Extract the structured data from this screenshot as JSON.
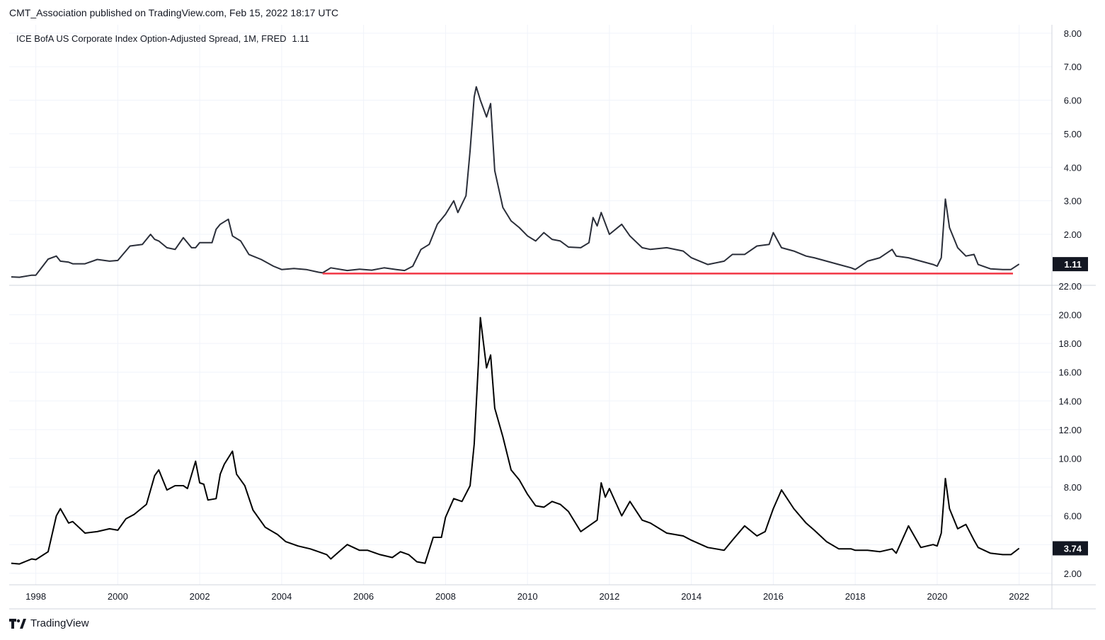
{
  "header": {
    "published": "CMT_Association published on TradingView.com, Feb 15, 2022 18:17 UTC"
  },
  "footer": {
    "brand": "TradingView"
  },
  "colors": {
    "line_top": "#2a2e39",
    "line_bottom": "#000000",
    "support_line": "#f23645",
    "grid": "#f0f3fa",
    "badge": "#131722"
  },
  "chart_data": [
    {
      "type": "line",
      "legend": "ICE BofA US Corporate Index Option-Adjusted Spread, 1M, FRED",
      "legend_value": "1.11",
      "last_value_label": "1.11",
      "ylim": [
        0.5,
        8.25
      ],
      "yticks": [
        "8.00",
        "7.00",
        "6.00",
        "5.00",
        "4.00",
        "3.00",
        "2.00"
      ],
      "horizontal_line": {
        "value": 0.83,
        "x_start": 2005.0,
        "x_end": 2021.85
      },
      "series": [
        {
          "x": [
            1997.4,
            1997.6,
            1997.9,
            1998.0,
            1998.3,
            1998.5,
            1998.6,
            1998.8,
            1998.9,
            1999.2,
            1999.5,
            1999.8,
            2000.0,
            2000.3,
            2000.6,
            2000.8,
            2000.9,
            2001.0,
            2001.2,
            2001.4,
            2001.6,
            2001.8,
            2001.9,
            2002.0,
            2002.3,
            2002.4,
            2002.5,
            2002.7,
            2002.8,
            2003.0,
            2003.2,
            2003.5,
            2003.8,
            2004.0,
            2004.3,
            2004.6,
            2004.9,
            2005.0,
            2005.2,
            2005.6,
            2005.9,
            2006.2,
            2006.5,
            2006.8,
            2007.0,
            2007.2,
            2007.4,
            2007.6,
            2007.8,
            2008.0,
            2008.2,
            2008.3,
            2008.5,
            2008.6,
            2008.7,
            2008.75,
            2008.85,
            2009.0,
            2009.1,
            2009.2,
            2009.4,
            2009.6,
            2009.8,
            2010.0,
            2010.2,
            2010.4,
            2010.6,
            2010.8,
            2011.0,
            2011.3,
            2011.5,
            2011.6,
            2011.7,
            2011.8,
            2012.0,
            2012.3,
            2012.5,
            2012.8,
            2013.0,
            2013.4,
            2013.8,
            2014.0,
            2014.4,
            2014.8,
            2015.0,
            2015.3,
            2015.6,
            2015.9,
            2016.0,
            2016.2,
            2016.5,
            2016.8,
            2017.0,
            2017.3,
            2017.6,
            2017.9,
            2018.0,
            2018.3,
            2018.6,
            2018.9,
            2019.0,
            2019.3,
            2019.6,
            2019.9,
            2020.0,
            2020.1,
            2020.2,
            2020.3,
            2020.5,
            2020.7,
            2020.9,
            2021.0,
            2021.3,
            2021.6,
            2021.8,
            2022.0
          ],
          "y": [
            0.73,
            0.72,
            0.78,
            0.78,
            1.26,
            1.35,
            1.2,
            1.17,
            1.12,
            1.12,
            1.25,
            1.2,
            1.22,
            1.65,
            1.7,
            2.0,
            1.85,
            1.8,
            1.6,
            1.55,
            1.9,
            1.6,
            1.6,
            1.75,
            1.75,
            2.15,
            2.3,
            2.45,
            1.95,
            1.8,
            1.4,
            1.25,
            1.05,
            0.95,
            0.98,
            0.95,
            0.87,
            0.85,
            1.0,
            0.92,
            0.96,
            0.93,
            1.0,
            0.95,
            0.92,
            1.05,
            1.55,
            1.7,
            2.3,
            2.6,
            3.0,
            2.65,
            3.15,
            4.5,
            6.1,
            6.4,
            6.0,
            5.5,
            5.9,
            3.9,
            2.8,
            2.4,
            2.2,
            1.95,
            1.8,
            2.05,
            1.85,
            1.8,
            1.62,
            1.6,
            1.75,
            2.5,
            2.25,
            2.65,
            2.0,
            2.3,
            1.95,
            1.6,
            1.55,
            1.6,
            1.5,
            1.3,
            1.1,
            1.2,
            1.4,
            1.4,
            1.65,
            1.7,
            2.05,
            1.6,
            1.5,
            1.35,
            1.3,
            1.2,
            1.1,
            1.0,
            0.95,
            1.2,
            1.3,
            1.55,
            1.35,
            1.3,
            1.2,
            1.1,
            1.05,
            1.3,
            3.05,
            2.2,
            1.6,
            1.35,
            1.4,
            1.1,
            0.97,
            0.95,
            0.95,
            1.11
          ]
        }
      ]
    },
    {
      "type": "line",
      "last_value_label": "3.74",
      "ylim": [
        1.2,
        22.0
      ],
      "yticks": [
        "22.00",
        "20.00",
        "18.00",
        "16.00",
        "14.00",
        "12.00",
        "10.00",
        "8.00",
        "6.00",
        "4.00",
        "2.00"
      ],
      "xticks": [
        "1998",
        "2000",
        "2002",
        "2004",
        "2006",
        "2008",
        "2010",
        "2012",
        "2014",
        "2016",
        "2018",
        "2020",
        "2022"
      ],
      "xlim": [
        1997.35,
        2022.8
      ],
      "series": [
        {
          "x": [
            1997.4,
            1997.6,
            1997.9,
            1998.0,
            1998.3,
            1998.5,
            1998.6,
            1998.8,
            1998.9,
            1999.2,
            1999.5,
            1999.8,
            2000.0,
            2000.2,
            2000.4,
            2000.7,
            2000.9,
            2001.0,
            2001.2,
            2001.4,
            2001.6,
            2001.7,
            2001.9,
            2002.0,
            2002.1,
            2002.2,
            2002.4,
            2002.5,
            2002.6,
            2002.8,
            2002.9,
            2003.1,
            2003.3,
            2003.6,
            2003.9,
            2004.1,
            2004.4,
            2004.7,
            2004.9,
            2005.1,
            2005.2,
            2005.4,
            2005.6,
            2005.9,
            2006.1,
            2006.4,
            2006.7,
            2006.9,
            2007.1,
            2007.3,
            2007.5,
            2007.7,
            2007.9,
            2008.0,
            2008.2,
            2008.4,
            2008.6,
            2008.7,
            2008.8,
            2008.85,
            2009.0,
            2009.1,
            2009.2,
            2009.4,
            2009.6,
            2009.8,
            2010.0,
            2010.2,
            2010.4,
            2010.6,
            2010.8,
            2011.0,
            2011.3,
            2011.5,
            2011.7,
            2011.8,
            2011.9,
            2012.0,
            2012.3,
            2012.5,
            2012.8,
            2013.0,
            2013.4,
            2013.8,
            2014.0,
            2014.4,
            2014.8,
            2015.0,
            2015.3,
            2015.6,
            2015.8,
            2015.9,
            2016.0,
            2016.2,
            2016.5,
            2016.8,
            2017.0,
            2017.3,
            2017.6,
            2017.9,
            2018.0,
            2018.3,
            2018.6,
            2018.9,
            2019.0,
            2019.3,
            2019.6,
            2019.9,
            2020.0,
            2020.1,
            2020.2,
            2020.3,
            2020.5,
            2020.7,
            2020.9,
            2021.0,
            2021.3,
            2021.6,
            2021.8,
            2022.0
          ],
          "y": [
            2.7,
            2.65,
            3.0,
            2.95,
            3.5,
            6.0,
            6.5,
            5.5,
            5.6,
            4.8,
            4.9,
            5.1,
            5.0,
            5.8,
            6.1,
            6.8,
            8.8,
            9.2,
            7.8,
            8.1,
            8.1,
            7.9,
            9.8,
            8.3,
            8.2,
            7.1,
            7.2,
            8.9,
            9.6,
            10.5,
            8.9,
            8.1,
            6.4,
            5.2,
            4.7,
            4.2,
            3.9,
            3.7,
            3.5,
            3.3,
            3.0,
            3.5,
            4.0,
            3.6,
            3.6,
            3.3,
            3.1,
            3.5,
            3.3,
            2.8,
            2.7,
            4.5,
            4.5,
            5.9,
            7.2,
            7.0,
            8.1,
            11.0,
            16.5,
            19.8,
            16.3,
            17.2,
            13.5,
            11.5,
            9.2,
            8.5,
            7.5,
            6.7,
            6.6,
            7.0,
            6.8,
            6.3,
            4.9,
            5.3,
            5.7,
            8.3,
            7.3,
            7.9,
            6.0,
            7.0,
            5.7,
            5.5,
            4.8,
            4.6,
            4.3,
            3.8,
            3.6,
            4.3,
            5.3,
            4.6,
            4.9,
            5.7,
            6.5,
            7.8,
            6.5,
            5.5,
            5.0,
            4.2,
            3.7,
            3.7,
            3.6,
            3.6,
            3.5,
            3.7,
            3.4,
            5.3,
            3.8,
            4.0,
            3.9,
            4.8,
            8.6,
            6.5,
            5.1,
            5.4,
            4.3,
            3.8,
            3.4,
            3.3,
            3.3,
            3.74
          ]
        }
      ]
    }
  ]
}
